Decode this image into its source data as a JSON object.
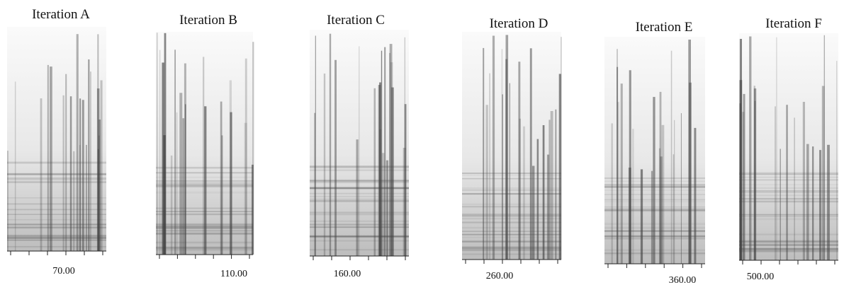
{
  "panels": [
    {
      "title": "Iteration A",
      "axis_label": "70.00"
    },
    {
      "title": "Iteration B",
      "axis_label": "110.00"
    },
    {
      "title": "Iteration C",
      "axis_label": "160.00"
    },
    {
      "title": "Iteration D",
      "axis_label": "260.00"
    },
    {
      "title": "Iteration E",
      "axis_label": "360.00"
    },
    {
      "title": "Iteration F",
      "axis_label": "500.00"
    }
  ]
}
